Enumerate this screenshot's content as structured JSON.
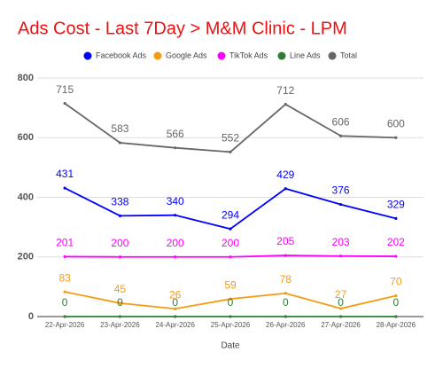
{
  "chart_data": {
    "type": "line",
    "title": "Ads Cost - Last 7Day > M&M Clinic - LPM",
    "x_label": "Date",
    "categories": [
      "22-Apr-2026",
      "23-Apr-2026",
      "24-Apr-2026",
      "25-Apr-2026",
      "26-Apr-2026",
      "27-Apr-2026",
      "28-Apr-2026"
    ],
    "series": [
      {
        "name": "Facebook Ads",
        "color": "#0000ff",
        "values": [
          431,
          338,
          340,
          294,
          429,
          376,
          329
        ]
      },
      {
        "name": "Google Ads",
        "color": "#f39c12",
        "values": [
          83,
          45,
          26,
          59,
          78,
          27,
          70
        ]
      },
      {
        "name": "TikTok Ads",
        "color": "#ff00ff",
        "values": [
          201,
          200,
          200,
          200,
          205,
          203,
          202
        ]
      },
      {
        "name": "Line Ads",
        "color": "#2e7d32",
        "values": [
          0,
          0,
          0,
          0,
          0,
          0,
          0
        ]
      },
      {
        "name": "Total",
        "color": "#666666",
        "values": [
          715,
          583,
          566,
          552,
          712,
          606,
          600
        ]
      }
    ],
    "ylim": [
      0,
      800
    ],
    "yticks": [
      0,
      200,
      400,
      600,
      800
    ],
    "grid": true,
    "legend": "top"
  }
}
